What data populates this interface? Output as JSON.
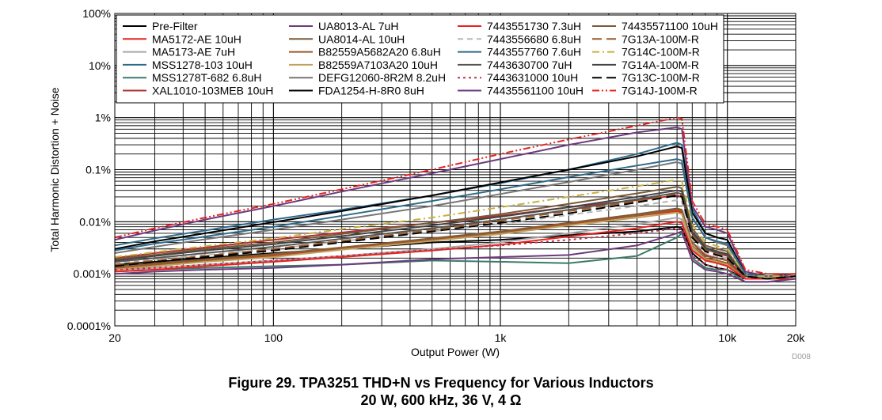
{
  "caption": {
    "line1": "Figure 29. TPA3251 THD+N vs Frequency for Various Inductors",
    "line2": "20 W, 600 kHz, 36 V, 4 Ω",
    "code": "D008"
  },
  "chart_data": {
    "type": "line",
    "title": "",
    "xlabel": "Output Power (W)",
    "ylabel": "Total Harmonic Distortion + Noise",
    "xscale": "log",
    "yscale": "log",
    "xlim": [
      20,
      20000
    ],
    "ylim": [
      0.0001,
      100
    ],
    "x_ticks": [
      {
        "value": 20,
        "label": "20"
      },
      {
        "value": 100,
        "label": "100"
      },
      {
        "value": 1000,
        "label": "1k"
      },
      {
        "value": 10000,
        "label": "10k"
      },
      {
        "value": 20000,
        "label": "20k"
      }
    ],
    "y_ticks": [
      {
        "value": 0.0001,
        "label": "0.0001%"
      },
      {
        "value": 0.001,
        "label": "0.001%"
      },
      {
        "value": 0.01,
        "label": "0.01%"
      },
      {
        "value": 0.1,
        "label": "0.1%"
      },
      {
        "value": 1,
        "label": "1%"
      },
      {
        "value": 10,
        "label": "10%"
      },
      {
        "value": 100,
        "label": "100%"
      }
    ],
    "grid": true,
    "legend_position": "top",
    "x": [
      20,
      30,
      50,
      100,
      200,
      500,
      1000,
      2000,
      4000,
      6000,
      6300,
      7000,
      8000,
      9000,
      10000,
      12000,
      15000,
      20000
    ],
    "series": [
      {
        "name": "Pre-Filter",
        "color": "#000000",
        "dash": "solid",
        "values": [
          0.0015,
          0.0017,
          0.002,
          0.0025,
          0.003,
          0.004,
          0.0045,
          0.0055,
          0.0065,
          0.008,
          0.0075,
          0.0025,
          0.0015,
          0.0013,
          0.0012,
          0.0008,
          0.0008,
          0.0009
        ]
      },
      {
        "name": "MA5172-AE 10uH",
        "color": "#e8231f",
        "dash": "solid",
        "values": [
          0.0013,
          0.0015,
          0.0018,
          0.0022,
          0.003,
          0.0045,
          0.006,
          0.009,
          0.013,
          0.016,
          0.015,
          0.004,
          0.0023,
          0.002,
          0.0018,
          0.0009,
          0.0008,
          0.0009
        ]
      },
      {
        "name": "MA5173-AE 7uH",
        "color": "#a8a8a8",
        "dash": "solid",
        "values": [
          0.0012,
          0.0013,
          0.0015,
          0.0018,
          0.0022,
          0.003,
          0.004,
          0.006,
          0.009,
          0.012,
          0.011,
          0.003,
          0.002,
          0.0018,
          0.0015,
          0.0008,
          0.0008,
          0.0008
        ]
      },
      {
        "name": "MSS1278-103 10uH",
        "color": "#2e6b8a",
        "dash": "solid",
        "values": [
          0.0035,
          0.0048,
          0.0068,
          0.011,
          0.017,
          0.032,
          0.055,
          0.1,
          0.2,
          0.33,
          0.3,
          0.018,
          0.006,
          0.005,
          0.0045,
          0.001,
          0.0009,
          0.0009
        ]
      },
      {
        "name": "MSS1278T-682 6.8uH",
        "color": "#3a7a6a",
        "dash": "solid",
        "values": [
          0.0011,
          0.0012,
          0.0013,
          0.0014,
          0.0015,
          0.0018,
          0.0017,
          0.0016,
          0.0022,
          0.005,
          0.006,
          0.002,
          0.0013,
          0.0012,
          0.0012,
          0.0007,
          0.0007,
          0.0008
        ]
      },
      {
        "name": "XAL1010-103MEB 10uH",
        "color": "#b03030",
        "dash": "solid",
        "values": [
          0.002,
          0.0025,
          0.0032,
          0.0045,
          0.0062,
          0.0095,
          0.013,
          0.019,
          0.026,
          0.032,
          0.03,
          0.006,
          0.003,
          0.0025,
          0.0022,
          0.0009,
          0.0008,
          0.0009
        ]
      },
      {
        "name": "UA8013-AL 7uH",
        "color": "#6e3a7e",
        "dash": "solid",
        "values": [
          0.0045,
          0.0068,
          0.011,
          0.02,
          0.038,
          0.085,
          0.16,
          0.3,
          0.52,
          0.65,
          0.6,
          0.02,
          0.008,
          0.007,
          0.006,
          0.0011,
          0.0009,
          0.001
        ]
      },
      {
        "name": "UA8014-AL 10uH",
        "color": "#7a5a3a",
        "dash": "solid",
        "values": [
          0.0014,
          0.0016,
          0.0019,
          0.0024,
          0.0032,
          0.0048,
          0.0065,
          0.0095,
          0.014,
          0.018,
          0.017,
          0.004,
          0.0022,
          0.002,
          0.0018,
          0.0008,
          0.0008,
          0.0009
        ]
      },
      {
        "name": "B82559A5682A20 6.8uH",
        "color": "#9a5a28",
        "dash": "solid",
        "values": [
          0.0013,
          0.0015,
          0.0018,
          0.0023,
          0.0031,
          0.0046,
          0.0062,
          0.0092,
          0.013,
          0.017,
          0.016,
          0.0035,
          0.002,
          0.0018,
          0.0016,
          0.0008,
          0.0008,
          0.0009
        ]
      },
      {
        "name": "B82559A7103A20 10uH",
        "color": "#c0a060",
        "dash": "solid",
        "values": [
          0.0012,
          0.0014,
          0.0017,
          0.0021,
          0.0029,
          0.0043,
          0.0058,
          0.0085,
          0.012,
          0.015,
          0.014,
          0.0033,
          0.0019,
          0.0017,
          0.0015,
          0.0008,
          0.0008,
          0.0009
        ]
      },
      {
        "name": "DEFG12060-8R2M 8.2uH",
        "color": "#777777",
        "dash": "solid",
        "values": [
          0.0025,
          0.0033,
          0.0046,
          0.007,
          0.011,
          0.02,
          0.034,
          0.058,
          0.1,
          0.14,
          0.13,
          0.012,
          0.005,
          0.004,
          0.0035,
          0.001,
          0.0009,
          0.0009
        ]
      },
      {
        "name": "FDA1254-H-8R0 8uH",
        "color": "#000000",
        "dash": "solid",
        "values": [
          0.003,
          0.0042,
          0.006,
          0.0098,
          0.016,
          0.032,
          0.057,
          0.1,
          0.18,
          0.28,
          0.26,
          0.015,
          0.006,
          0.005,
          0.0045,
          0.001,
          0.0009,
          0.0009
        ]
      },
      {
        "name": "7443551730 7.3uH",
        "color": "#e8231f",
        "dash": "solid",
        "values": [
          0.0011,
          0.0012,
          0.0014,
          0.0017,
          0.0021,
          0.0028,
          0.0036,
          0.0052,
          0.0075,
          0.01,
          0.0095,
          0.0028,
          0.0018,
          0.0016,
          0.0014,
          0.0008,
          0.0008,
          0.0008
        ]
      },
      {
        "name": "7443556680 6.8uH",
        "color": "#b8b8b8",
        "dash": "dash",
        "values": [
          0.0016,
          0.0019,
          0.0023,
          0.003,
          0.0042,
          0.0065,
          0.009,
          0.0135,
          0.02,
          0.026,
          0.024,
          0.0045,
          0.0025,
          0.0022,
          0.002,
          0.0009,
          0.0008,
          0.0009
        ]
      },
      {
        "name": "7443557760 7.6uH",
        "color": "#2e6b8a",
        "dash": "solid",
        "values": [
          0.0028,
          0.0038,
          0.0052,
          0.008,
          0.013,
          0.025,
          0.042,
          0.072,
          0.12,
          0.16,
          0.15,
          0.012,
          0.005,
          0.0042,
          0.0038,
          0.001,
          0.0009,
          0.0009
        ]
      },
      {
        "name": "7443630700 7uH",
        "color": "#555555",
        "dash": "solid",
        "values": [
          0.0017,
          0.002,
          0.0025,
          0.0033,
          0.0047,
          0.0075,
          0.011,
          0.017,
          0.027,
          0.036,
          0.034,
          0.006,
          0.003,
          0.0026,
          0.0023,
          0.0009,
          0.0008,
          0.0009
        ]
      },
      {
        "name": "7443631000 10uH",
        "color": "#c03048",
        "dash": "dot",
        "values": [
          0.0012,
          0.0013,
          0.0015,
          0.0018,
          0.0022,
          0.0029,
          0.0035,
          0.0045,
          0.006,
          0.0075,
          0.0072,
          0.0022,
          0.0015,
          0.0013,
          0.0012,
          0.0009,
          0.0008,
          0.0009
        ]
      },
      {
        "name": "74435561100 10uH",
        "color": "#6e3a7e",
        "dash": "solid",
        "values": [
          0.001,
          0.0011,
          0.0012,
          0.0013,
          0.0015,
          0.0019,
          0.0021,
          0.0023,
          0.0035,
          0.006,
          0.0065,
          0.0018,
          0.0012,
          0.0011,
          0.001,
          0.0007,
          0.0007,
          0.0008
        ]
      },
      {
        "name": "74435571100 10uH",
        "color": "#7a5a3a",
        "dash": "solid",
        "values": [
          0.0019,
          0.0023,
          0.003,
          0.004,
          0.0058,
          0.0095,
          0.014,
          0.022,
          0.035,
          0.047,
          0.044,
          0.0075,
          0.0035,
          0.003,
          0.0027,
          0.0009,
          0.0009,
          0.0009
        ]
      },
      {
        "name": "7G13A-100M-R",
        "color": "#9a5a28",
        "dash": "dashlong",
        "values": [
          0.0015,
          0.0018,
          0.0022,
          0.003,
          0.0043,
          0.007,
          0.0105,
          0.016,
          0.025,
          0.034,
          0.032,
          0.0055,
          0.0028,
          0.0024,
          0.0021,
          0.0009,
          0.0008,
          0.0009
        ]
      },
      {
        "name": "7G14C-100M-R",
        "color": "#c8b040",
        "dash": "dashdot",
        "values": [
          0.0021,
          0.0026,
          0.0034,
          0.0048,
          0.0072,
          0.012,
          0.019,
          0.03,
          0.048,
          0.064,
          0.06,
          0.009,
          0.004,
          0.0034,
          0.003,
          0.0009,
          0.0009,
          0.0009
        ]
      },
      {
        "name": "7G14A-100M-R",
        "color": "#444444",
        "dash": "solid",
        "values": [
          0.0018,
          0.0022,
          0.0028,
          0.0037,
          0.0053,
          0.0085,
          0.0125,
          0.019,
          0.03,
          0.04,
          0.038,
          0.0065,
          0.0032,
          0.0027,
          0.0024,
          0.0009,
          0.0008,
          0.0009
        ]
      },
      {
        "name": "7G13C-100M-R",
        "color": "#000000",
        "dash": "dashlong",
        "values": [
          0.0014,
          0.0017,
          0.0021,
          0.0028,
          0.004,
          0.0065,
          0.0095,
          0.0145,
          0.0235,
          0.032,
          0.03,
          0.005,
          0.0027,
          0.0023,
          0.002,
          0.0009,
          0.0008,
          0.0009
        ]
      },
      {
        "name": "7G14J-100M-R",
        "color": "#e8231f",
        "dash": "dashdotdot",
        "values": [
          0.005,
          0.0075,
          0.012,
          0.022,
          0.042,
          0.1,
          0.2,
          0.38,
          0.7,
          1.0,
          0.95,
          0.025,
          0.009,
          0.008,
          0.007,
          0.0012,
          0.001,
          0.001
        ]
      }
    ]
  }
}
